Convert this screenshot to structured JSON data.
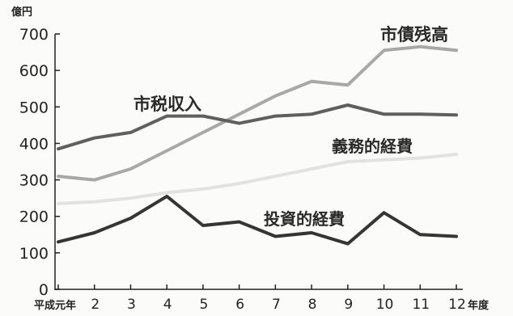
{
  "chart_data": {
    "type": "line",
    "title": "",
    "xlabel": "年度",
    "ylabel": "億円",
    "ylim": [
      0,
      700
    ],
    "yticks": [
      0,
      100,
      200,
      300,
      400,
      500,
      600,
      700
    ],
    "categories": [
      "平成元年",
      "2",
      "3",
      "4",
      "5",
      "6",
      "7",
      "8",
      "9",
      "10",
      "11",
      "12"
    ],
    "grid": false,
    "legend": "inline labels",
    "series": [
      {
        "name": "市債残高",
        "color": "#a8a8a8",
        "values": [
          310,
          300,
          330,
          380,
          430,
          480,
          530,
          570,
          560,
          655,
          665,
          655
        ]
      },
      {
        "name": "市税収入",
        "color": "#5f5f5f",
        "values": [
          385,
          415,
          430,
          475,
          475,
          455,
          475,
          480,
          505,
          480,
          480,
          478
        ]
      },
      {
        "name": "義務的経費",
        "color": "#e2e2e2",
        "values": [
          235,
          240,
          250,
          265,
          275,
          290,
          310,
          330,
          350,
          355,
          360,
          370
        ]
      },
      {
        "name": "投資的経費",
        "color": "#353535",
        "values": [
          130,
          155,
          195,
          255,
          175,
          185,
          145,
          155,
          125,
          210,
          150,
          145
        ]
      }
    ]
  }
}
